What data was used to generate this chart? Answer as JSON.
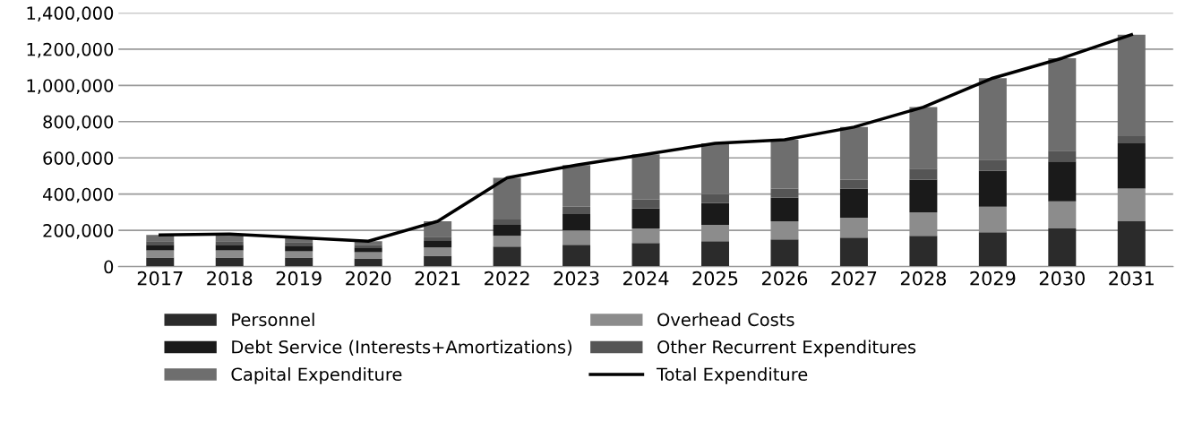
{
  "chart_data": {
    "type": "bar",
    "stacked": true,
    "categories": [
      "2017",
      "2018",
      "2019",
      "2020",
      "2021",
      "2022",
      "2023",
      "2024",
      "2025",
      "2026",
      "2027",
      "2028",
      "2029",
      "2030",
      "2031"
    ],
    "series": [
      {
        "name": "Personnel",
        "color": "#2b2b2b",
        "values": [
          50000,
          50000,
          50000,
          45000,
          60000,
          110000,
          120000,
          130000,
          140000,
          150000,
          160000,
          170000,
          190000,
          210000,
          250000
        ]
      },
      {
        "name": "Overhead Costs",
        "color": "#8c8c8c",
        "values": [
          40000,
          40000,
          35000,
          35000,
          45000,
          60000,
          80000,
          80000,
          90000,
          100000,
          110000,
          130000,
          140000,
          150000,
          180000
        ]
      },
      {
        "name": "Debt Service (Interests+Amortizations)",
        "color": "#1a1a1a",
        "values": [
          30000,
          30000,
          30000,
          25000,
          40000,
          60000,
          90000,
          110000,
          120000,
          130000,
          160000,
          180000,
          200000,
          220000,
          250000
        ]
      },
      {
        "name": "Other Recurrent Expenditures",
        "color": "#555555",
        "values": [
          20000,
          20000,
          20000,
          15000,
          20000,
          30000,
          40000,
          50000,
          50000,
          50000,
          50000,
          60000,
          60000,
          60000,
          40000
        ]
      },
      {
        "name": "Capital Expenditure",
        "color": "#6e6e6e",
        "values": [
          35000,
          40000,
          25000,
          20000,
          85000,
          230000,
          230000,
          250000,
          280000,
          270000,
          290000,
          340000,
          450000,
          510000,
          560000
        ]
      },
      {
        "name": "Total Expenditure",
        "type": "line",
        "color": "#000000",
        "values": [
          175000,
          180000,
          160000,
          140000,
          250000,
          490000,
          560000,
          620000,
          680000,
          700000,
          770000,
          880000,
          1040000,
          1150000,
          1280000
        ]
      }
    ],
    "ylim": [
      0,
      1400000
    ],
    "yticks": [
      0,
      {
        "value": 200000,
        "label": "200,000"
      },
      {
        "value": 400000,
        "label": "400,000"
      },
      {
        "value": 600000,
        "label": "600,000"
      },
      {
        "value": 800000,
        "label": "800,000"
      },
      {
        "value": 1000000,
        "label": "1,000,000"
      },
      {
        "value": 1200000,
        "label": "1,200,000"
      },
      {
        "value": 1400000,
        "label": "1,400,000"
      }
    ],
    "grid": "y",
    "legend": "bottom"
  }
}
